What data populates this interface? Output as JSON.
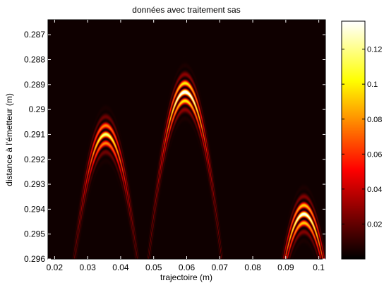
{
  "chart_data": {
    "type": "heatmap",
    "title": "données avec traitement sas",
    "xlabel": "trajectoire (m)",
    "ylabel": "distance à l'émetteur (m)",
    "xlim": [
      0.018,
      0.102
    ],
    "ylim": [
      0.2864,
      0.296
    ],
    "x_ticks": [
      "0.02",
      "0.03",
      "0.04",
      "0.05",
      "0.06",
      "0.07",
      "0.08",
      "0.09",
      "0.1"
    ],
    "x_tick_values": [
      0.02,
      0.03,
      0.04,
      0.05,
      0.06,
      0.07,
      0.08,
      0.09,
      0.1
    ],
    "y_ticks": [
      "0.287",
      "0.288",
      "0.289",
      "0.29",
      "0.291",
      "0.292",
      "0.293",
      "0.294",
      "0.295",
      "0.296"
    ],
    "y_tick_values": [
      0.287,
      0.288,
      0.289,
      0.29,
      0.291,
      0.292,
      0.293,
      0.294,
      0.295,
      0.296
    ],
    "y_reversed": true,
    "colormap": "hot",
    "colorbar": {
      "min": 0,
      "max": 0.136,
      "ticks": [
        "0.02",
        "0.04",
        "0.06",
        "0.08",
        "0.1",
        "0.12"
      ],
      "tick_values": [
        0.02,
        0.04,
        0.06,
        0.08,
        0.1,
        0.12
      ],
      "placement": "right"
    },
    "grid": false,
    "sources": [
      {
        "x": 0.0355,
        "y": 0.291,
        "peak": 0.105
      },
      {
        "x": 0.0595,
        "y": 0.2893,
        "peak": 0.136
      },
      {
        "x": 0.0955,
        "y": 0.2942,
        "peak": 0.125
      }
    ]
  }
}
